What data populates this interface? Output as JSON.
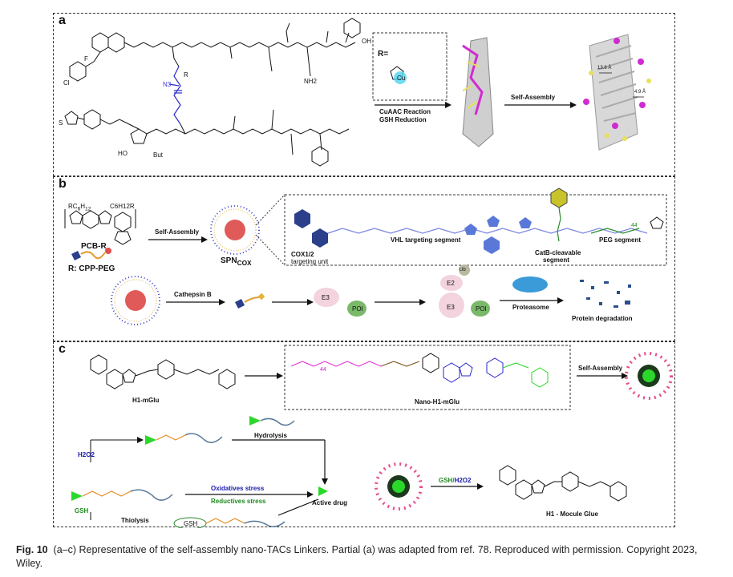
{
  "panel_a": {
    "letter": "a",
    "r_group": "R=",
    "cu_label": "Cu",
    "atoms": [
      "F",
      "Cl",
      "N3",
      "O",
      "NH2",
      "OH",
      "R",
      "S",
      "N",
      "But",
      "HO"
    ],
    "arrow1_top": "CuAAC Reaction",
    "arrow1_bottom": "GSH Reduction",
    "arrow2": "Self-Assembly",
    "dist1": "13.8 Å",
    "dist2": "4.9 Å"
  },
  "panel_b": {
    "letter": "b",
    "sub1_pre": "RC",
    "sub1_sub": "6",
    "sub1_mid": "H",
    "sub1_sub2": "12",
    "sub2": "C6H12R",
    "polymer": "PCB-R",
    "r_def": "R: CPP-PEG",
    "self_assembly": "Self-Assembly",
    "spn_main": "SPN",
    "spn_sub": "COX",
    "cox": "COX1/2",
    "cox2": "targeting unit",
    "vhl": "VHL targeting segment",
    "catb": "CatB-cleavable",
    "catb2": "segment",
    "peg": "PEG segment",
    "peg_n": "44",
    "cathepsin": "Cathepsin B",
    "e3": "E3",
    "e2": "E2",
    "ub": "Ub",
    "poi": "POI",
    "proteasome": "Proteasome",
    "degradation": "Protein degradation"
  },
  "panel_c": {
    "letter": "c",
    "h1_mglu": "H1-mGlu",
    "nano": "Nano-H1-mGlu",
    "peg_n": "44",
    "self_assembly": "Self-Assembly",
    "h2o2": "H2O2",
    "hydrolysis": "Hydrolysis",
    "oxidative": "Oxidatives stress",
    "reductive": "Reductives stress",
    "active": "Active drug",
    "gsh": "GSH",
    "thiolysis": "Thiolysis",
    "gsh_h2o2_a": "GSH/",
    "gsh_h2o2_b": "H2O2",
    "h1_glue": "H1 - Mocule Glue"
  },
  "caption": {
    "fig": "Fig. 10",
    "text": "(a–c) Representative of the self-assembly nano-TACs Linkers. Partial (a) was adapted from ref. 78. Reproduced with permission. Copyright 2023, Wiley."
  }
}
